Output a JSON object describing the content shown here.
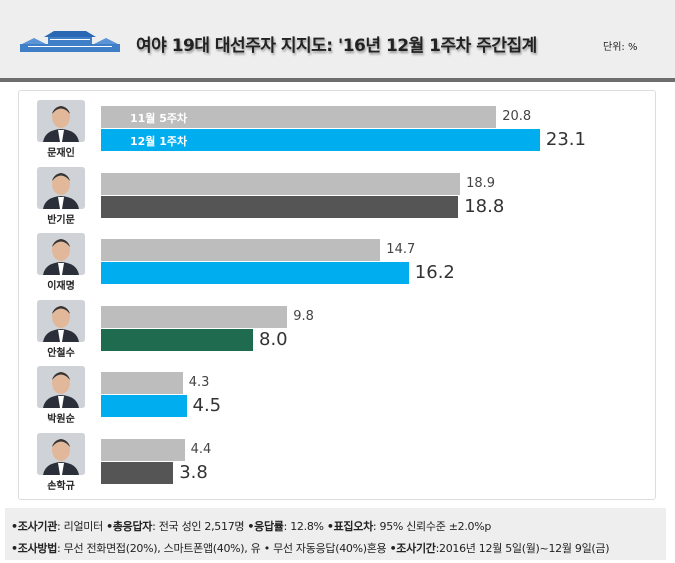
{
  "header": {
    "title": "여야 19대 대선주자 지지도: '16년 12월 1주차 주간집계",
    "unit": "단위: %"
  },
  "chart_data": {
    "type": "bar",
    "orientation": "horizontal",
    "title": "여야 19대 대선주자 지지도: '16년 12월 1주차 주간집계",
    "unit": "%",
    "categories": [
      "문재인",
      "반기문",
      "이재명",
      "안철수",
      "박원순",
      "손학규"
    ],
    "series": [
      {
        "name": "11월 5주차",
        "values": [
          20.8,
          18.9,
          14.7,
          9.8,
          4.3,
          4.4
        ],
        "color": "#bdbdbd"
      },
      {
        "name": "12월 1주차",
        "values": [
          23.1,
          18.8,
          16.2,
          8.0,
          4.5,
          3.8
        ],
        "colors": [
          "#00aeef",
          "#555555",
          "#00aeef",
          "#1e6b4f",
          "#00aeef",
          "#555555"
        ]
      }
    ],
    "value_labels": {
      "prev": [
        "20.8",
        "18.9",
        "14.7",
        "9.8",
        "4.3",
        "4.4"
      ],
      "cur": [
        "23.1",
        "18.8",
        "16.2",
        "8.0",
        "4.5",
        "3.8"
      ]
    },
    "xlim": [
      0,
      25
    ]
  },
  "footer": {
    "l1": [
      {
        "k": "•조사기관",
        "v": ": 리얼미터 "
      },
      {
        "k": "•총응답자",
        "v": ": 전국 성인 2,517명 "
      },
      {
        "k": "•응답률",
        "v": ": 12.8% "
      },
      {
        "k": "•표집오차",
        "v": ": 95% 신뢰수준 ±2.0%p"
      }
    ],
    "l2": [
      {
        "k": "•조사방법",
        "v": ": 무선 전화면접(20%), 스마트폰앱(40%), 유 • 무선 자동응답(40%)혼용 "
      },
      {
        "k": "•조사기간",
        "v": ":2016년 12월 5일(월)~12월 9일(금)"
      }
    ]
  }
}
